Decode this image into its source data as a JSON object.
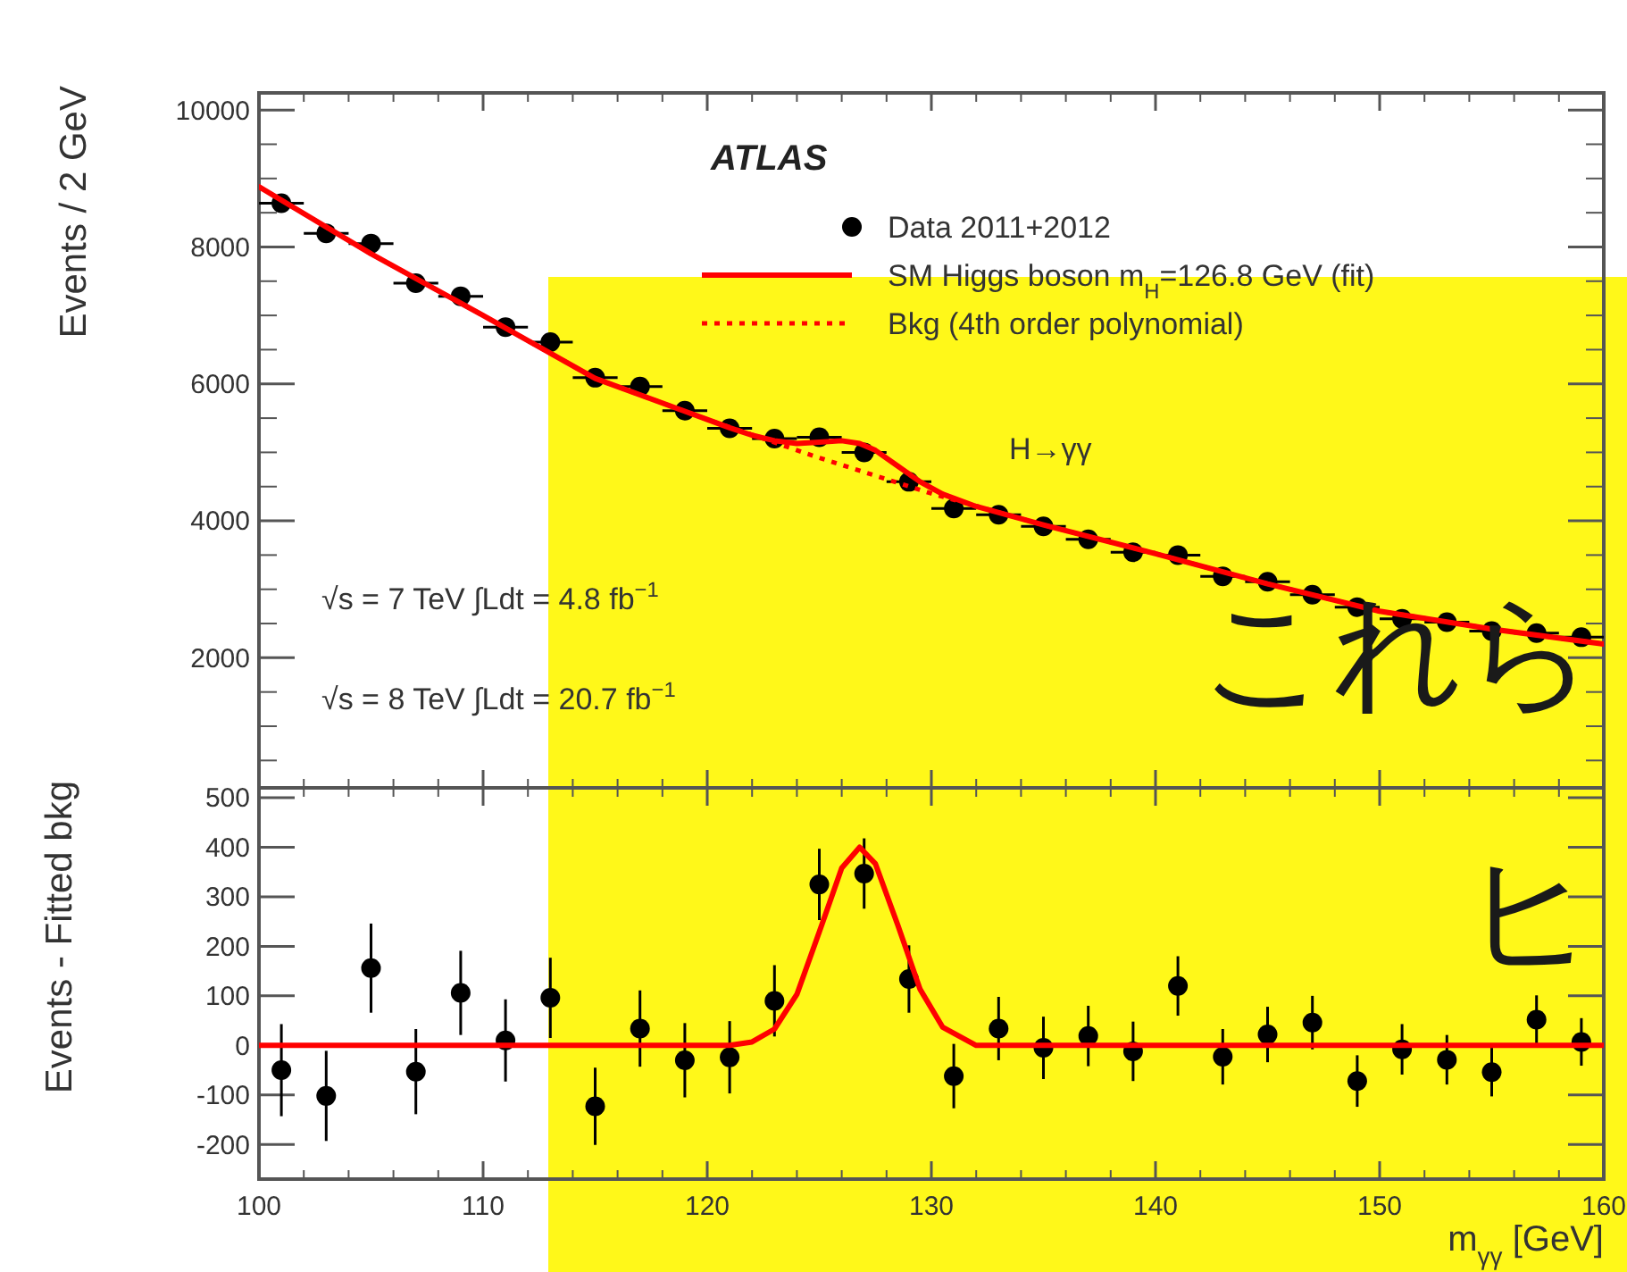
{
  "chart_data": [
    {
      "type": "scatter",
      "ylabel": "Events / 2 GeV",
      "xlim": [
        100,
        160
      ],
      "xticks": [
        100,
        110,
        120,
        130,
        140,
        150,
        160
      ],
      "ylim": [
        100,
        10250
      ],
      "yticks": [
        2000,
        4000,
        6000,
        8000,
        10000
      ],
      "tick_labels": "y",
      "legend": "top right",
      "grid": false,
      "annotations": [
        "ATLAS",
        "H→γγ",
        "√s = 7 TeV ∫Ldt = 4.8 fb$^{−1}$",
        "√s = 8 TeV ∫Ldt = 20.7 fb$^{−1}$",
        "これら",
        "ヒ"
      ],
      "series": [
        {
          "name": "Data 2011+2012",
          "color": "#000000",
          "marker": "circle",
          "x": [
            101,
            103,
            105,
            107,
            109,
            111,
            113,
            115,
            117,
            119,
            121,
            123,
            125,
            127,
            129,
            131,
            133,
            135,
            137,
            139,
            141,
            143,
            145,
            147,
            149,
            151,
            153,
            155,
            157,
            159
          ],
          "values": [
            8640,
            8200,
            8050,
            7470,
            7280,
            6830,
            6610,
            6090,
            5960,
            5610,
            5350,
            5200,
            5220,
            5000,
            4570,
            4180,
            4090,
            3920,
            3730,
            3540,
            3500,
            3190,
            3110,
            2920,
            2740,
            2570,
            2520,
            2390,
            2360,
            2300
          ],
          "xerrors": [
            1,
            1,
            1,
            1,
            1,
            1,
            1,
            1,
            1,
            1,
            1,
            1,
            1,
            1,
            1,
            1,
            1,
            1,
            1,
            1,
            1,
            1,
            1,
            1,
            1,
            1,
            1,
            1,
            1,
            1
          ]
        },
        {
          "name": "SM Higgs boson m$_{H}$=126.8 GeV (fit)",
          "type": "line",
          "color": "#ff0000",
          "line_style": "solid",
          "x": [
            100,
            105,
            110,
            115,
            120,
            121,
            122,
            123,
            124,
            125,
            126,
            126.8,
            127.5,
            128.5,
            129.5,
            130.5,
            132,
            135,
            140,
            145,
            150,
            155,
            160
          ],
          "values": [
            8880,
            7900,
            7000,
            6080,
            5480,
            5360,
            5250,
            5170,
            5130,
            5150,
            5170,
            5130,
            5030,
            4800,
            4570,
            4390,
            4210,
            3940,
            3520,
            3080,
            2680,
            2420,
            2200
          ]
        },
        {
          "name": "Bkg (4th order polynomial)",
          "type": "line",
          "color": "#ff0000",
          "line_style": "dotted",
          "x": [
            100,
            105,
            110,
            115,
            120,
            125,
            130,
            135,
            140,
            145,
            150,
            155,
            160
          ],
          "values": [
            8880,
            7900,
            7000,
            6080,
            5480,
            4920,
            4400,
            3940,
            3520,
            3080,
            2680,
            2420,
            2200
          ]
        }
      ]
    },
    {
      "type": "scatter",
      "ylabel": "Events - Fitted bkg",
      "xlabel": "m$_{γγ}$ [GeV]",
      "xlim": [
        100,
        160
      ],
      "xticks": [
        100,
        110,
        120,
        130,
        140,
        150,
        160
      ],
      "ylim": [
        -270,
        520
      ],
      "yticks": [
        -200,
        -100,
        0,
        100,
        200,
        300,
        400,
        500
      ],
      "grid": false,
      "series": [
        {
          "color": "#000000",
          "marker": "circle",
          "x": [
            101,
            103,
            105,
            107,
            109,
            111,
            113,
            115,
            117,
            119,
            121,
            123,
            125,
            127,
            129,
            131,
            133,
            135,
            137,
            139,
            141,
            143,
            145,
            147,
            149,
            151,
            153,
            155,
            157,
            159
          ],
          "values": [
            -50,
            -102,
            156,
            -53,
            106,
            10,
            96,
            -123,
            34,
            -30,
            -24,
            90,
            325,
            347,
            134,
            -62,
            34,
            -5,
            19,
            -12,
            120,
            -23,
            22,
            46,
            -72,
            -8,
            -29,
            -54,
            52,
            7
          ],
          "errors": [
            93,
            91,
            90,
            86,
            85,
            83,
            81,
            78,
            77,
            75,
            73,
            72,
            72,
            71,
            68,
            65,
            64,
            63,
            61,
            60,
            60,
            56,
            56,
            54,
            52,
            51,
            50,
            49,
            49,
            48
          ]
        },
        {
          "type": "line",
          "color": "#ff0000",
          "line_style": "solid",
          "x": [
            100,
            121,
            122,
            123,
            124,
            125,
            126,
            126.8,
            127.5,
            128.5,
            129.5,
            130.5,
            132,
            160
          ],
          "values": [
            0,
            0,
            7,
            33,
            103,
            229,
            358,
            400,
            367,
            243,
            113,
            37,
            0,
            0
          ]
        }
      ]
    }
  ]
}
